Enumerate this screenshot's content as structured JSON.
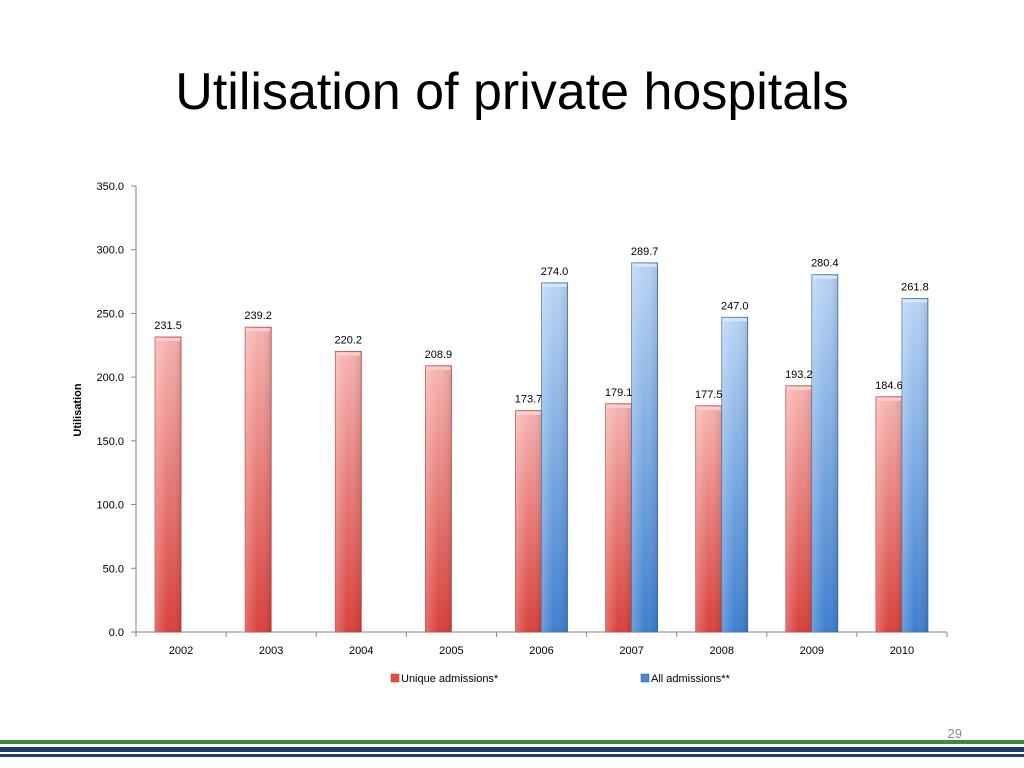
{
  "slide": {
    "title": "Utilisation of private hospitals",
    "page_number": "29"
  },
  "colors": {
    "unique": "#e0504b",
    "all": "#4a86d4",
    "footer_green": "#3a8a3a",
    "footer_navy": "#1f3d6b"
  },
  "chart_data": {
    "type": "bar",
    "title": "",
    "xlabel": "",
    "ylabel": "Utilisation",
    "ylim": [
      0,
      350
    ],
    "yticks": [
      "0.0",
      "50.0",
      "100.0",
      "150.0",
      "200.0",
      "250.0",
      "300.0",
      "350.0"
    ],
    "grid": false,
    "legend_position": "bottom",
    "categories": [
      "2002",
      "2003",
      "2004",
      "2005",
      "2006",
      "2007",
      "2008",
      "2009",
      "2010"
    ],
    "series": [
      {
        "name": "Unique admissions*",
        "values": [
          231.5,
          239.2,
          220.2,
          208.9,
          173.7,
          179.1,
          177.5,
          193.2,
          184.6
        ]
      },
      {
        "name": "All admissions**",
        "values": [
          null,
          null,
          null,
          null,
          274.0,
          289.7,
          247.0,
          280.4,
          261.8
        ]
      }
    ]
  }
}
